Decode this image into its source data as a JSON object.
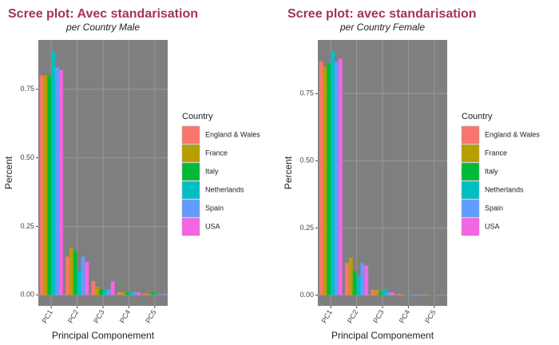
{
  "chart_data": [
    {
      "type": "bar",
      "title": "Scree plot: Avec standarisation",
      "subtitle": "per Country Male",
      "x_label": "Principal Componement",
      "y_label": "Percent",
      "legend_title": "Country",
      "categories": [
        "PC1",
        "PC2",
        "PC3",
        "PC4",
        "PC5"
      ],
      "series": [
        {
          "name": "England & Wales",
          "color": "#F8766D",
          "values": [
            0.8,
            0.14,
            0.05,
            0.01,
            0.005
          ]
        },
        {
          "name": "France",
          "color": "#B79F00",
          "values": [
            0.8,
            0.17,
            0.03,
            0.01,
            0.005
          ]
        },
        {
          "name": "Italy",
          "color": "#00BA38",
          "values": [
            0.8,
            0.16,
            0.02,
            0.01,
            0.01
          ]
        },
        {
          "name": "Netherlands",
          "color": "#00BFC4",
          "values": [
            0.89,
            0.09,
            0.02,
            0.01,
            0.002
          ]
        },
        {
          "name": "Spain",
          "color": "#619CFF",
          "values": [
            0.83,
            0.14,
            0.02,
            0.01,
            0.002
          ]
        },
        {
          "name": "USA",
          "color": "#F564E3",
          "values": [
            0.82,
            0.12,
            0.05,
            0.01,
            0.003
          ]
        }
      ],
      "ylim": [
        -0.04,
        0.93
      ],
      "yticks": [
        {
          "value": 0,
          "label": "0.00"
        },
        {
          "value": 0.25,
          "label": "0.25"
        },
        {
          "value": 0.5,
          "label": "0.50"
        },
        {
          "value": 0.75,
          "label": "0.75"
        }
      ],
      "grid": true,
      "legend": "right"
    },
    {
      "type": "bar",
      "title": "Scree plot: avec standarisation",
      "subtitle": "per Country Female",
      "x_label": "Principal Componement",
      "y_label": "Percent",
      "legend_title": "Country",
      "categories": [
        "PC1",
        "PC2",
        "PC3",
        "PC4",
        "PC5"
      ],
      "series": [
        {
          "name": "England & Wales",
          "color": "#F8766D",
          "values": [
            0.87,
            0.12,
            0.02,
            0.005,
            0.002
          ]
        },
        {
          "name": "France",
          "color": "#B79F00",
          "values": [
            0.85,
            0.14,
            0.02,
            0.002,
            0.002
          ]
        },
        {
          "name": "Italy",
          "color": "#00BA38",
          "values": [
            0.86,
            0.09,
            0.01,
            0.002,
            0.002
          ]
        },
        {
          "name": "Netherlands",
          "color": "#00BFC4",
          "values": [
            0.91,
            0.07,
            0.02,
            0.002,
            0.001
          ]
        },
        {
          "name": "Spain",
          "color": "#619CFF",
          "values": [
            0.87,
            0.12,
            0.01,
            0.002,
            0.001
          ]
        },
        {
          "name": "USA",
          "color": "#F564E3",
          "values": [
            0.88,
            0.11,
            0.01,
            0.002,
            0.001
          ]
        }
      ],
      "ylim": [
        -0.04,
        0.95
      ],
      "yticks": [
        {
          "value": 0,
          "label": "0.00"
        },
        {
          "value": 0.25,
          "label": "0.25"
        },
        {
          "value": 0.5,
          "label": "0.50"
        },
        {
          "value": 0.75,
          "label": "0.75"
        }
      ],
      "grid": true,
      "legend": "right"
    }
  ]
}
